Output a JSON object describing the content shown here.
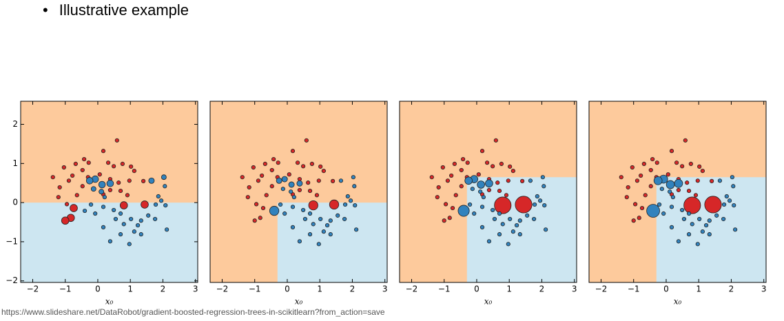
{
  "bullet": "Illustrative example",
  "source": "https://www.slideshare.net/DataRobot/gradient-boosted-regression-trees-in-scikitlearn?from_action=save",
  "chart_data": [
    {
      "type": "scatter",
      "xlabel": "x₀",
      "xlim": [
        -2.37,
        3.07
      ],
      "ylim": [
        -2.04,
        2.59
      ],
      "xticks": [
        {
          "value": -2,
          "label": "−2"
        },
        {
          "value": -1,
          "label": "−1"
        },
        0,
        1,
        2,
        3
      ],
      "yticks": [
        {
          "value": -2,
          "label": "−2"
        },
        {
          "value": -1,
          "label": "−1"
        },
        0,
        1,
        2
      ],
      "background": "#fdca9c",
      "regions": [
        {
          "x": [
            -2.37,
            3.07
          ],
          "y": [
            -2.04,
            0
          ],
          "color": "#cde6f1"
        }
      ],
      "series": [
        {
          "color": "#d62728",
          "x": [
            0.59,
            -0.42,
            -0.68,
            -1.04,
            -0.28,
            0.17,
            0.32,
            0.49,
            0.76,
            1.02,
            -0.47,
            -0.78,
            -0.89,
            -1.38,
            -1.17,
            -1.21,
            -0.95,
            -0.3,
            0.06,
            0.38,
            0.64,
            0.97,
            1.4,
            0.38,
            0.7,
            0.91,
            0.17,
            -0.47,
            -0.64,
            1.12,
            -0.74,
            -0.83,
            -1.0,
            0.8,
            1.44
          ],
          "y": [
            1.59,
            1.11,
            0.99,
            0.9,
            1.02,
            1.32,
            1.02,
            0.93,
            0.99,
            0.92,
            0.83,
            0.69,
            0.56,
            0.65,
            0.39,
            0.14,
            -0.04,
            0.65,
            0.72,
            0.6,
            0.51,
            0.56,
            0.55,
            0.32,
            0.3,
            0.19,
            0.21,
            0.42,
            0.19,
            0.81,
            -0.14,
            -0.39,
            -0.46,
            -0.07,
            -0.05
          ],
          "sizes": [
            1,
            1,
            1,
            1,
            1,
            1,
            1,
            1,
            1,
            1,
            1,
            1,
            1,
            1,
            1,
            1,
            1,
            1,
            1,
            1,
            1,
            1,
            1,
            1,
            1,
            1,
            1,
            1,
            1,
            1,
            2,
            2,
            2,
            2,
            2
          ]
        },
        {
          "color": "#3182bd",
          "x": [
            -0.08,
            -0.25,
            0.13,
            0.38,
            0.11,
            -0.13,
            0.21,
            1.65,
            2.03,
            2.06,
            1.86,
            1.95,
            1.78,
            2.08,
            -0.4,
            -0.21,
            0.17,
            0.49,
            0.7,
            1.02,
            1.33,
            1.55,
            1.76,
            2.12,
            0.17,
            0.55,
            0.8,
            1.12,
            1.33,
            0.7,
            0.38,
            0.97,
            1.23,
            -0.08
          ],
          "y": [
            0.6,
            0.56,
            0.46,
            0.49,
            0.28,
            0.35,
            0.14,
            0.56,
            0.65,
            0.42,
            0.16,
            0.05,
            -0.05,
            -0.07,
            -0.21,
            -0.05,
            -0.11,
            -0.19,
            -0.28,
            -0.42,
            -0.46,
            -0.33,
            -0.42,
            -0.69,
            -0.63,
            -0.42,
            -0.55,
            -0.74,
            -0.81,
            -0.81,
            -0.99,
            -1.06,
            -0.58,
            -0.28
          ],
          "sizes": [
            1.8,
            1.8,
            1.8,
            1.8,
            1.3,
            1.3,
            1,
            1.5,
            1.3,
            1,
            1,
            1,
            1,
            1,
            1,
            1,
            1,
            1,
            1,
            1,
            1,
            1,
            1,
            1,
            1,
            1,
            1,
            1,
            1,
            1,
            1,
            1,
            1,
            1
          ]
        }
      ]
    },
    {
      "type": "scatter",
      "xlabel": "x₀",
      "xlim": [
        -2.37,
        3.07
      ],
      "ylim": [
        -2.04,
        2.59
      ],
      "xticks": [
        {
          "value": -2,
          "label": "−2"
        },
        {
          "value": -1,
          "label": "−1"
        },
        0,
        1,
        2,
        3
      ],
      "background": "#fdca9c",
      "regions": [
        {
          "x": [
            -0.3,
            3.07
          ],
          "y": [
            -2.04,
            0
          ],
          "color": "#cde6f1"
        }
      ],
      "series": [
        {
          "color": "#d62728",
          "x": [
            0.59,
            -0.42,
            -0.68,
            -1.04,
            -0.28,
            0.17,
            0.32,
            0.49,
            0.76,
            1.02,
            -0.47,
            -0.78,
            -0.89,
            -1.38,
            -1.17,
            -1.21,
            -0.95,
            -0.3,
            0.06,
            0.38,
            0.64,
            0.97,
            1.4,
            0.38,
            0.7,
            0.91,
            0.17,
            -0.47,
            -0.64,
            1.12,
            -0.74,
            -0.83,
            -1.0,
            0.8,
            1.44
          ],
          "y": [
            1.59,
            1.11,
            0.99,
            0.9,
            1.02,
            1.32,
            1.02,
            0.93,
            0.99,
            0.92,
            0.83,
            0.69,
            0.56,
            0.65,
            0.39,
            0.14,
            -0.04,
            0.65,
            0.72,
            0.6,
            0.51,
            0.56,
            0.55,
            0.32,
            0.3,
            0.19,
            0.21,
            0.42,
            0.19,
            0.81,
            -0.14,
            -0.39,
            -0.46,
            -0.07,
            -0.05
          ],
          "sizes": [
            1,
            1,
            1,
            1,
            1,
            1,
            1,
            1,
            1,
            1,
            1,
            1,
            1,
            1,
            1,
            1,
            1,
            1,
            1,
            1,
            1,
            1,
            1,
            1,
            1,
            1,
            1,
            1,
            1,
            1,
            1,
            1,
            1,
            2.5,
            2.5
          ]
        },
        {
          "color": "#3182bd",
          "x": [
            -0.08,
            -0.25,
            0.13,
            0.38,
            0.11,
            -0.13,
            0.21,
            1.65,
            2.03,
            2.06,
            1.86,
            1.95,
            1.78,
            2.08,
            -0.4,
            -0.21,
            0.17,
            0.49,
            0.7,
            1.02,
            1.33,
            1.55,
            1.76,
            2.12,
            0.17,
            0.55,
            0.8,
            1.12,
            1.33,
            0.7,
            0.38,
            0.97,
            1.23,
            -0.08
          ],
          "y": [
            0.6,
            0.56,
            0.46,
            0.49,
            0.28,
            0.35,
            0.14,
            0.56,
            0.65,
            0.42,
            0.16,
            0.05,
            -0.05,
            -0.07,
            -0.21,
            -0.05,
            -0.11,
            -0.19,
            -0.28,
            -0.42,
            -0.46,
            -0.33,
            -0.42,
            -0.69,
            -0.63,
            -0.42,
            -0.55,
            -0.74,
            -0.81,
            -0.81,
            -0.99,
            -1.06,
            -0.58,
            -0.28
          ],
          "sizes": [
            1.5,
            1.5,
            1.5,
            1.5,
            1,
            1,
            1,
            1,
            1,
            1,
            1,
            1,
            1,
            1,
            2.5,
            1,
            1,
            1,
            1,
            1,
            1,
            1,
            1,
            1,
            1,
            1,
            1,
            1,
            1,
            1,
            1,
            1,
            1,
            1
          ]
        }
      ]
    },
    {
      "type": "scatter",
      "xlabel": "x₀",
      "xlim": [
        -2.37,
        3.07
      ],
      "ylim": [
        -2.04,
        2.59
      ],
      "xticks": [
        {
          "value": -2,
          "label": "−2"
        },
        {
          "value": -1,
          "label": "−1"
        },
        0,
        1,
        2,
        3
      ],
      "background": "#fdca9c",
      "regions": [
        {
          "x": [
            -0.3,
            3.07
          ],
          "y": [
            -2.04,
            0.65
          ],
          "color": "#cde6f1"
        }
      ],
      "series": [
        {
          "color": "#d62728",
          "x": [
            0.59,
            -0.42,
            -0.68,
            -1.04,
            -0.28,
            0.17,
            0.32,
            0.49,
            0.76,
            1.02,
            -0.47,
            -0.78,
            -0.89,
            -1.38,
            -1.17,
            -1.21,
            -0.95,
            -0.3,
            0.06,
            0.38,
            0.64,
            0.97,
            1.4,
            0.38,
            0.7,
            0.91,
            0.17,
            -0.47,
            -0.64,
            1.12,
            -0.74,
            -0.83,
            -1.0,
            0.8,
            1.44
          ],
          "y": [
            1.59,
            1.11,
            0.99,
            0.9,
            1.02,
            1.32,
            1.02,
            0.93,
            0.99,
            0.92,
            0.83,
            0.69,
            0.56,
            0.65,
            0.39,
            0.14,
            -0.04,
            0.65,
            0.72,
            0.6,
            0.51,
            0.56,
            0.55,
            0.32,
            0.3,
            0.19,
            0.21,
            0.42,
            0.19,
            0.81,
            -0.14,
            -0.39,
            -0.46,
            -0.07,
            -0.05
          ],
          "sizes": [
            1,
            1,
            1,
            1,
            1,
            1,
            1,
            1,
            1,
            1,
            1,
            1,
            1,
            1,
            1,
            1,
            1,
            1,
            1,
            1,
            1,
            1,
            1,
            1,
            1,
            1,
            1,
            1,
            1,
            1,
            1,
            1,
            1,
            4.5,
            4.5
          ]
        },
        {
          "color": "#3182bd",
          "x": [
            -0.08,
            -0.25,
            0.13,
            0.38,
            0.11,
            -0.13,
            0.21,
            1.65,
            2.03,
            2.06,
            1.86,
            1.95,
            1.78,
            2.08,
            -0.4,
            -0.21,
            0.17,
            0.49,
            0.7,
            1.02,
            1.33,
            1.55,
            1.76,
            2.12,
            0.17,
            0.55,
            0.8,
            1.12,
            1.33,
            0.7,
            0.38,
            0.97,
            1.23,
            -0.08
          ],
          "y": [
            0.6,
            0.56,
            0.46,
            0.49,
            0.28,
            0.35,
            0.14,
            0.56,
            0.65,
            0.42,
            0.16,
            0.05,
            -0.05,
            -0.07,
            -0.21,
            -0.05,
            -0.11,
            -0.19,
            -0.28,
            -0.42,
            -0.46,
            -0.33,
            -0.42,
            -0.69,
            -0.63,
            -0.42,
            -0.55,
            -0.74,
            -0.81,
            -0.81,
            -0.99,
            -1.06,
            -0.58,
            -0.28
          ],
          "sizes": [
            2,
            2,
            2,
            2,
            1,
            1,
            1,
            1,
            1,
            1,
            1,
            1,
            1,
            1,
            3,
            1,
            1,
            1,
            1,
            1,
            1,
            1,
            1,
            1,
            1,
            1,
            1,
            1,
            1,
            1,
            1,
            1,
            1,
            1
          ]
        }
      ]
    },
    {
      "type": "scatter",
      "xlabel": "x₀",
      "xlim": [
        -2.37,
        3.07
      ],
      "ylim": [
        -2.04,
        2.59
      ],
      "xticks": [
        {
          "value": -2,
          "label": "−2"
        },
        {
          "value": -1,
          "label": "−1"
        },
        0,
        1,
        2,
        3
      ],
      "background": "#fdca9c",
      "regions": [
        {
          "x": [
            -0.3,
            3.07
          ],
          "y": [
            -2.04,
            0.65
          ],
          "color": "#cde6f1"
        }
      ],
      "series": [
        {
          "color": "#d62728",
          "x": [
            0.59,
            -0.42,
            -0.68,
            -1.04,
            -0.28,
            0.17,
            0.32,
            0.49,
            0.76,
            1.02,
            -0.47,
            -0.78,
            -0.89,
            -1.38,
            -1.17,
            -1.21,
            -0.95,
            -0.3,
            0.06,
            0.38,
            0.64,
            0.97,
            1.4,
            0.38,
            0.7,
            0.91,
            0.17,
            -0.47,
            -0.64,
            1.12,
            -0.74,
            -0.83,
            -1.0,
            0.8,
            1.44
          ],
          "y": [
            1.59,
            1.11,
            0.99,
            0.9,
            1.02,
            1.32,
            1.02,
            0.93,
            0.99,
            0.92,
            0.83,
            0.69,
            0.56,
            0.65,
            0.39,
            0.14,
            -0.04,
            0.65,
            0.72,
            0.6,
            0.51,
            0.56,
            0.55,
            0.32,
            0.3,
            0.19,
            0.21,
            0.42,
            0.19,
            0.81,
            -0.14,
            -0.39,
            -0.46,
            -0.07,
            -0.05
          ],
          "sizes": [
            1,
            1,
            1,
            1,
            1,
            1,
            1,
            1,
            1,
            1,
            1,
            1,
            1,
            1,
            1,
            1,
            1,
            1,
            1,
            1,
            1,
            1,
            1,
            1,
            1,
            1,
            1,
            1,
            1,
            1,
            1,
            1,
            1,
            4.5,
            4.5
          ]
        },
        {
          "color": "#3182bd",
          "x": [
            -0.08,
            -0.25,
            0.13,
            0.38,
            0.11,
            -0.13,
            0.21,
            1.65,
            2.03,
            2.06,
            1.86,
            1.95,
            1.78,
            2.08,
            -0.4,
            -0.21,
            0.17,
            0.49,
            0.7,
            1.02,
            1.33,
            1.55,
            1.76,
            2.12,
            0.17,
            0.55,
            0.8,
            1.12,
            1.33,
            0.7,
            0.38,
            0.97,
            1.23,
            -0.08
          ],
          "y": [
            0.6,
            0.56,
            0.46,
            0.49,
            0.28,
            0.35,
            0.14,
            0.56,
            0.65,
            0.42,
            0.16,
            0.05,
            -0.05,
            -0.07,
            -0.21,
            -0.05,
            -0.11,
            -0.19,
            -0.28,
            -0.42,
            -0.46,
            -0.33,
            -0.42,
            -0.69,
            -0.63,
            -0.42,
            -0.55,
            -0.74,
            -0.81,
            -0.81,
            -0.99,
            -1.06,
            -0.58,
            -0.28
          ],
          "sizes": [
            2.2,
            2.2,
            2.2,
            2.2,
            1,
            1,
            1,
            1,
            1,
            1,
            1,
            1,
            1,
            1,
            3.5,
            1,
            1,
            1,
            1,
            1,
            1,
            1,
            1,
            1,
            1,
            1,
            1,
            1,
            1,
            1,
            1,
            1,
            1,
            1
          ]
        }
      ]
    }
  ]
}
